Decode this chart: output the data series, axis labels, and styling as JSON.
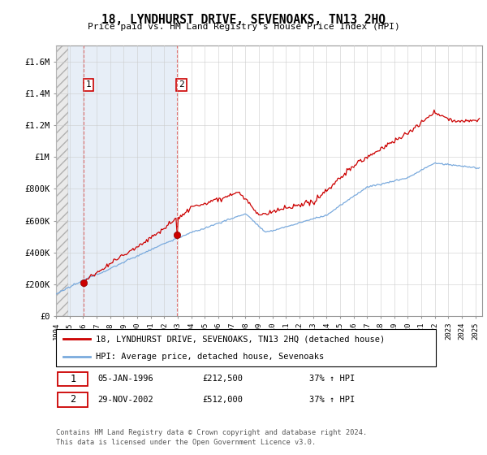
{
  "title": "18, LYNDHURST DRIVE, SEVENOAKS, TN13 2HQ",
  "subtitle": "Price paid vs. HM Land Registry's House Price Index (HPI)",
  "ylabel_ticks": [
    "£0",
    "£200K",
    "£400K",
    "£600K",
    "£800K",
    "£1M",
    "£1.2M",
    "£1.4M",
    "£1.6M"
  ],
  "ytick_values": [
    0,
    200000,
    400000,
    600000,
    800000,
    1000000,
    1200000,
    1400000,
    1600000
  ],
  "ylim": [
    0,
    1700000
  ],
  "xlim_start": 1994.0,
  "xlim_end": 2025.5,
  "purchase1_year": 1996.03,
  "purchase1_price": 212500,
  "purchase1_label": "1",
  "purchase1_date": "05-JAN-1996",
  "purchase1_hpi": "37% ↑ HPI",
  "purchase2_year": 2002.92,
  "purchase2_price": 512000,
  "purchase2_label": "2",
  "purchase2_date": "29-NOV-2002",
  "purchase2_hpi": "37% ↑ HPI",
  "hpi_color": "#7aaadd",
  "price_color": "#cc0000",
  "dashed_line_color": "#dd6666",
  "grid_color": "#cccccc",
  "legend_label1": "18, LYNDHURST DRIVE, SEVENOAKS, TN13 2HQ (detached house)",
  "legend_label2": "HPI: Average price, detached house, Sevenoaks",
  "footer": "Contains HM Land Registry data © Crown copyright and database right 2024.\nThis data is licensed under the Open Government Licence v3.0.",
  "xticks": [
    1994,
    1995,
    1996,
    1997,
    1998,
    1999,
    2000,
    2001,
    2002,
    2003,
    2004,
    2005,
    2006,
    2007,
    2008,
    2009,
    2010,
    2011,
    2012,
    2013,
    2014,
    2015,
    2016,
    2017,
    2018,
    2019,
    2020,
    2021,
    2022,
    2023,
    2024,
    2025
  ]
}
